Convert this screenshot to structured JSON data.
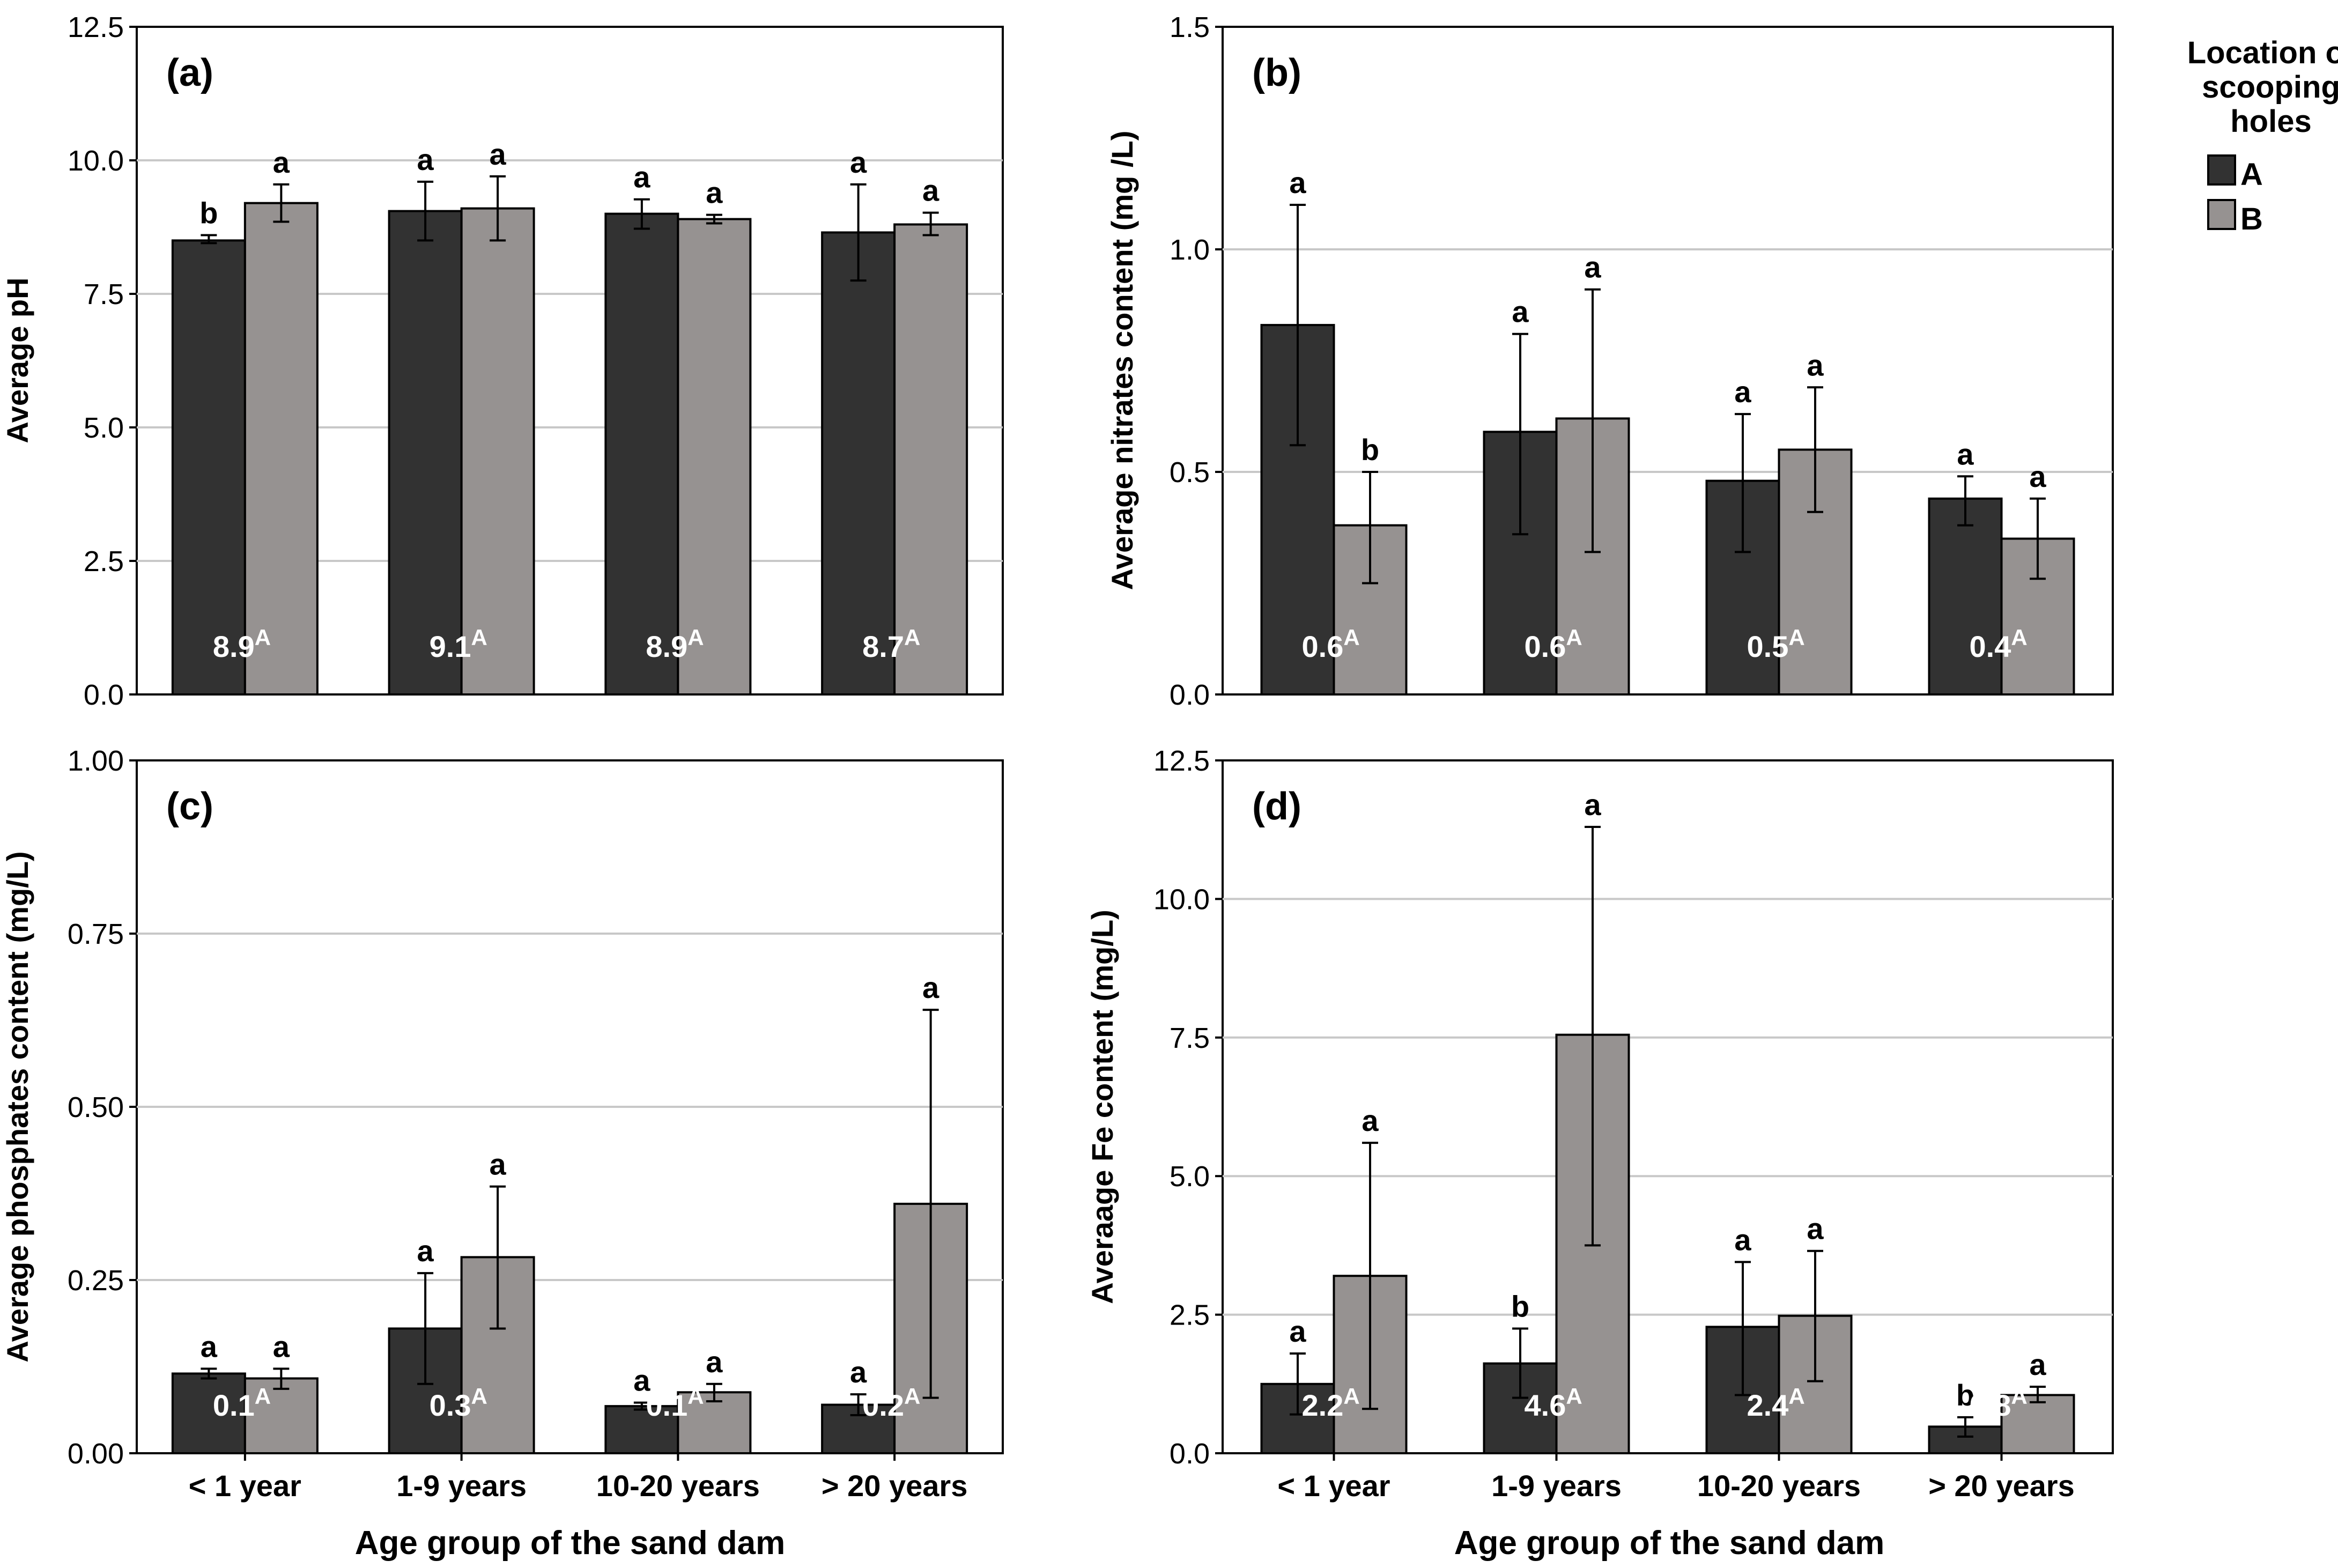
{
  "figure": {
    "xlabel": "Age group of the sand dam",
    "legend": {
      "title_lines": [
        "Location of",
        "scooping",
        "holes"
      ],
      "entries": [
        {
          "name": "A",
          "color": "#323232"
        },
        {
          "name": "B",
          "color": "#969291"
        }
      ]
    },
    "categories": [
      "< 1 year",
      "1-9 years",
      "10-20 years",
      "> 20 years"
    ]
  },
  "chart_data": [
    {
      "type": "bar",
      "panel_label": "(a)",
      "ylabel": "Average pH",
      "ylim": [
        0,
        12.5
      ],
      "yticks": [
        "0.0",
        "2.5",
        "5.0",
        "7.5",
        "10.0",
        "12.5"
      ],
      "ytick_values": [
        0,
        2.5,
        5,
        7.5,
        10,
        12.5
      ],
      "grid": true,
      "show_xticks": false,
      "categories": [
        "< 1 year",
        "1-9 years",
        "10-20 years",
        "> 20 years"
      ],
      "series": [
        {
          "name": "A",
          "values": [
            8.5,
            9.05,
            9.0,
            8.65
          ],
          "err_low": [
            8.45,
            8.5,
            8.72,
            7.75
          ],
          "err_high": [
            8.6,
            9.6,
            9.27,
            9.55
          ],
          "letters": [
            "b",
            "a",
            "a",
            "a"
          ]
        },
        {
          "name": "B",
          "values": [
            9.2,
            9.1,
            8.9,
            8.8
          ],
          "err_low": [
            8.85,
            8.5,
            8.82,
            8.6
          ],
          "err_high": [
            9.55,
            9.7,
            8.98,
            9.02
          ],
          "letters": [
            "a",
            "a",
            "a",
            "a"
          ]
        }
      ],
      "mean_labels": [
        {
          "value": "8.9",
          "letter": "A"
        },
        {
          "value": "9.1",
          "letter": "A"
        },
        {
          "value": "8.9",
          "letter": "A"
        },
        {
          "value": "8.7",
          "letter": "A"
        }
      ]
    },
    {
      "type": "bar",
      "panel_label": "(b)",
      "ylabel": "Average nitrates content (mg /L)",
      "ylim": [
        0,
        1.5
      ],
      "yticks": [
        "0.0",
        "0.5",
        "1.0",
        "1.5"
      ],
      "ytick_values": [
        0,
        0.5,
        1.0,
        1.5
      ],
      "grid": true,
      "show_xticks": false,
      "categories": [
        "< 1 year",
        "1-9 years",
        "10-20 years",
        "> 20 years"
      ],
      "series": [
        {
          "name": "A",
          "values": [
            0.83,
            0.59,
            0.48,
            0.44
          ],
          "err_low": [
            0.56,
            0.36,
            0.32,
            0.38
          ],
          "err_high": [
            1.1,
            0.81,
            0.63,
            0.49
          ],
          "letters": [
            "a",
            "a",
            "a",
            "a"
          ]
        },
        {
          "name": "B",
          "values": [
            0.38,
            0.62,
            0.55,
            0.35
          ],
          "err_low": [
            0.25,
            0.32,
            0.41,
            0.26
          ],
          "err_high": [
            0.5,
            0.91,
            0.69,
            0.44
          ],
          "letters": [
            "b",
            "a",
            "a",
            "a"
          ]
        }
      ],
      "mean_labels": [
        {
          "value": "0.6",
          "letter": "A"
        },
        {
          "value": "0.6",
          "letter": "A"
        },
        {
          "value": "0.5",
          "letter": "A"
        },
        {
          "value": "0.4",
          "letter": "A"
        }
      ]
    },
    {
      "type": "bar",
      "panel_label": "(c)",
      "ylabel": "Average phosphates content (mg/L)",
      "ylim": [
        0,
        1.0
      ],
      "yticks": [
        "0.00",
        "0.25",
        "0.50",
        "0.75",
        "1.00"
      ],
      "ytick_values": [
        0,
        0.25,
        0.5,
        0.75,
        1.0
      ],
      "grid": true,
      "show_xticks": true,
      "categories": [
        "< 1 year",
        "1-9 years",
        "10-20 years",
        "> 20 years"
      ],
      "series": [
        {
          "name": "A",
          "values": [
            0.115,
            0.18,
            0.068,
            0.07
          ],
          "err_low": [
            0.108,
            0.1,
            0.063,
            0.055
          ],
          "err_high": [
            0.122,
            0.26,
            0.073,
            0.085
          ],
          "letters": [
            "a",
            "a",
            "a",
            "a"
          ]
        },
        {
          "name": "B",
          "values": [
            0.108,
            0.283,
            0.088,
            0.36
          ],
          "err_low": [
            0.093,
            0.18,
            0.075,
            0.08
          ],
          "err_high": [
            0.122,
            0.385,
            0.1,
            0.64
          ],
          "letters": [
            "a",
            "a",
            "a",
            "a"
          ]
        }
      ],
      "mean_labels": [
        {
          "value": "0.1",
          "letter": "A"
        },
        {
          "value": "0.3",
          "letter": "A"
        },
        {
          "value": "0.1",
          "letter": "A"
        },
        {
          "value": "0.2",
          "letter": "A"
        }
      ]
    },
    {
      "type": "bar",
      "panel_label": "(d)",
      "ylabel": "Averaage Fe content (mg/L)",
      "ylim": [
        0,
        12.5
      ],
      "yticks": [
        "0.0",
        "2.5",
        "5.0",
        "7.5",
        "10.0",
        "12.5"
      ],
      "ytick_values": [
        0,
        2.5,
        5,
        7.5,
        10,
        12.5
      ],
      "grid": true,
      "show_xticks": true,
      "categories": [
        "< 1 year",
        "1-9 years",
        "10-20 years",
        "> 20 years"
      ],
      "series": [
        {
          "name": "A",
          "values": [
            1.25,
            1.62,
            2.28,
            0.48
          ],
          "err_low": [
            0.7,
            1.0,
            1.05,
            0.3
          ],
          "err_high": [
            1.8,
            2.25,
            3.45,
            0.65
          ],
          "letters": [
            "a",
            "b",
            "a",
            "b"
          ]
        },
        {
          "name": "B",
          "values": [
            3.2,
            7.55,
            2.48,
            1.05
          ],
          "err_low": [
            0.8,
            3.75,
            1.3,
            0.92
          ],
          "err_high": [
            5.6,
            11.3,
            3.65,
            1.2
          ],
          "letters": [
            "a",
            "a",
            "a",
            "a"
          ]
        }
      ],
      "mean_labels": [
        {
          "value": "2.2",
          "letter": "A"
        },
        {
          "value": "4.6",
          "letter": "A"
        },
        {
          "value": "2.4",
          "letter": "A"
        },
        {
          "value": "0.8",
          "letter": "A"
        }
      ]
    }
  ]
}
